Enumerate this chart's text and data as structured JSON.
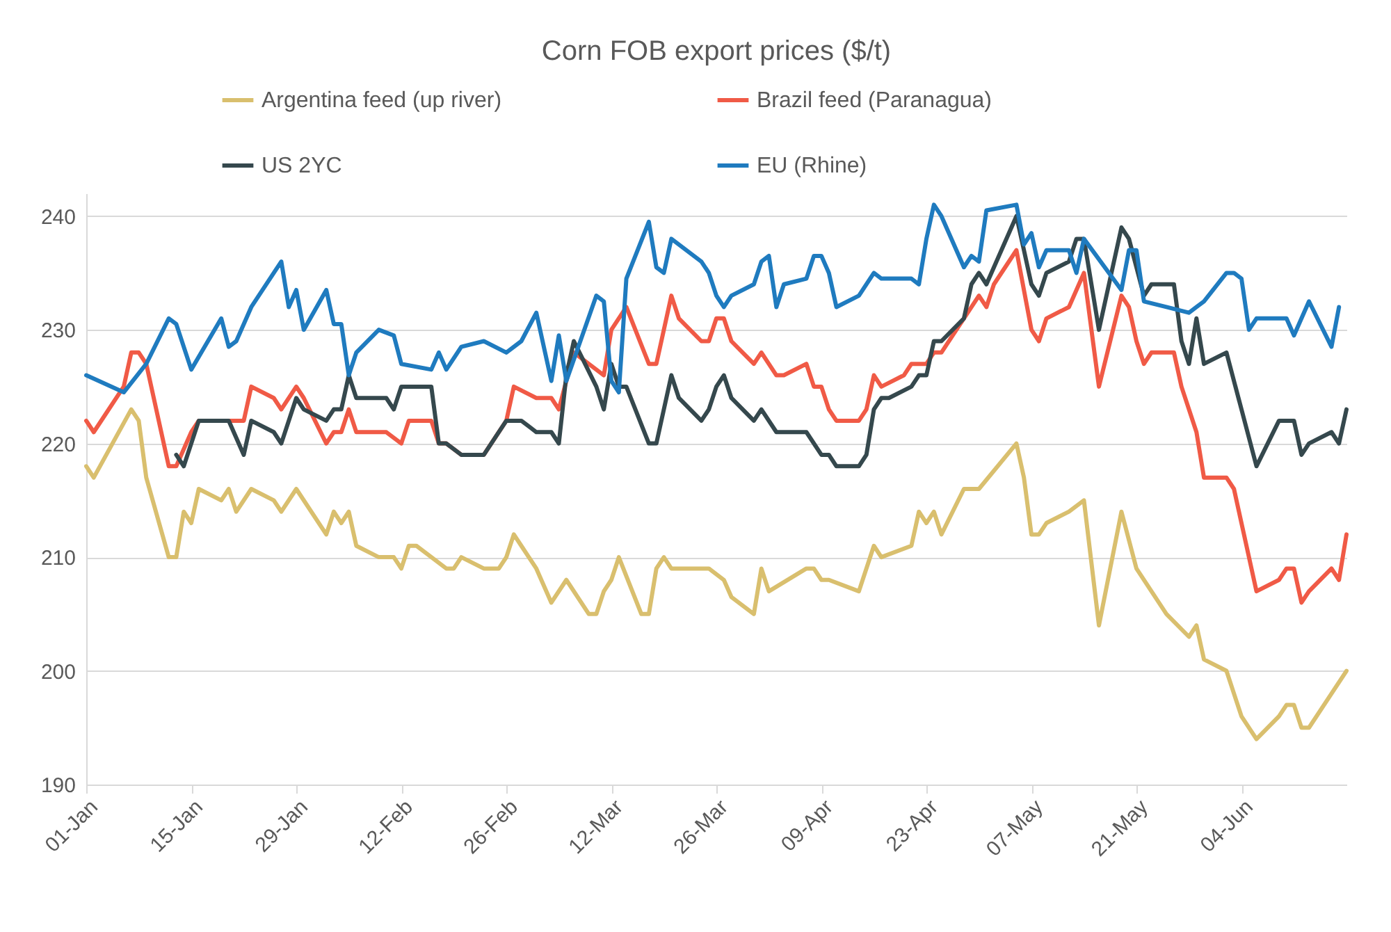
{
  "chart_data": {
    "type": "line",
    "title": "Corn FOB export prices ($/t)",
    "ylim": [
      190,
      242
    ],
    "yticks": [
      190,
      200,
      210,
      220,
      230,
      240
    ],
    "xlim": [
      "--01-01",
      "--06-18"
    ],
    "xticks": [
      {
        "value": "--01-01",
        "label": "01-Jan"
      },
      {
        "value": "--01-15",
        "label": "15-Jan"
      },
      {
        "value": "--01-29",
        "label": "29-Jan"
      },
      {
        "value": "--02-12",
        "label": "12-Feb"
      },
      {
        "value": "--02-26",
        "label": "26-Feb"
      },
      {
        "value": "--03-12",
        "label": "12-Mar"
      },
      {
        "value": "--03-26",
        "label": "26-Mar"
      },
      {
        "value": "--04-09",
        "label": "09-Apr"
      },
      {
        "value": "--04-23",
        "label": "23-Apr"
      },
      {
        "value": "--05-07",
        "label": "07-May"
      },
      {
        "value": "--05-21",
        "label": "21-May"
      },
      {
        "value": "--06-04",
        "label": "04-Jun"
      }
    ],
    "grid": "y",
    "legend": "top",
    "line_style": "solid",
    "series": [
      {
        "name": "Argentina feed (up river)",
        "color": "#d9bf6e",
        "x": [
          "--01-01",
          "--01-02",
          "--01-07",
          "--01-08",
          "--01-09",
          "--01-12",
          "--01-13",
          "--01-14",
          "--01-15",
          "--01-16",
          "--01-19",
          "--01-20",
          "--01-21",
          "--01-23",
          "--01-26",
          "--01-27",
          "--01-29",
          "--02-02",
          "--02-03",
          "--02-04",
          "--02-05",
          "--02-06",
          "--02-09",
          "--02-11",
          "--02-12",
          "--02-13",
          "--02-14",
          "--02-18",
          "--02-19",
          "--02-20",
          "--02-23",
          "--02-25",
          "--02-26",
          "--02-27",
          "--02-28",
          "--03-02",
          "--03-04",
          "--03-06",
          "--03-09",
          "--03-10",
          "--03-11",
          "--03-12",
          "--03-13",
          "--03-16",
          "--03-17",
          "--03-18",
          "--03-19",
          "--03-20",
          "--03-25",
          "--03-27",
          "--03-28",
          "--03-31",
          "--04-01",
          "--04-02",
          "--04-07",
          "--04-08",
          "--04-09",
          "--04-10",
          "--04-14",
          "--04-16",
          "--04-17",
          "--04-21",
          "--04-22",
          "--04-23",
          "--04-24",
          "--04-25",
          "--04-28",
          "--04-30",
          "--05-05",
          "--05-06",
          "--05-07",
          "--05-08",
          "--05-09",
          "--05-12",
          "--05-14",
          "--05-16",
          "--05-19",
          "--05-21",
          "--05-23",
          "--05-25",
          "--05-28",
          "--05-29",
          "--05-30",
          "--06-02",
          "--06-04",
          "--06-06",
          "--06-09",
          "--06-10",
          "--06-11",
          "--06-12",
          "--06-13",
          "--06-18"
        ],
        "values": [
          218,
          217,
          223,
          222,
          217,
          210,
          210,
          214,
          213,
          216,
          215,
          216,
          214,
          216,
          215,
          214,
          216,
          212,
          214,
          213,
          214,
          211,
          210,
          210,
          209,
          211,
          211,
          209,
          209,
          210,
          209,
          209,
          210,
          212,
          211,
          209,
          206,
          208,
          205,
          205,
          207,
          208,
          210,
          205,
          205,
          209,
          210,
          209,
          209,
          208,
          206.5,
          205,
          209,
          207,
          209,
          209,
          208,
          208,
          207,
          211,
          210,
          211,
          214,
          213,
          214,
          212,
          216,
          216,
          220,
          217,
          212,
          212,
          213,
          214,
          215,
          204,
          214,
          209,
          207,
          205,
          203,
          204,
          201,
          200,
          196,
          194,
          196,
          197,
          197,
          195,
          195,
          200
        ]
      },
      {
        "name": "Brazil feed (Paranagua)",
        "color": "#f05a46",
        "x": [
          "--01-01",
          "--01-02",
          "--01-06",
          "--01-07",
          "--01-08",
          "--01-09",
          "--01-12",
          "--01-13",
          "--01-15",
          "--01-16",
          "--01-22",
          "--01-23",
          "--01-26",
          "--01-27",
          "--01-29",
          "--01-30",
          "--02-02",
          "--02-03",
          "--02-04",
          "--02-05",
          "--02-06",
          "--02-10",
          "--02-12",
          "--02-13",
          "--02-16",
          "--02-17",
          "--02-18",
          "--02-20",
          "--02-23",
          "--02-26",
          "--02-27",
          "--03-02",
          "--03-04",
          "--03-05",
          "--03-07",
          "--03-11",
          "--03-12",
          "--03-14",
          "--03-17",
          "--03-18",
          "--03-20",
          "--03-21",
          "--03-24",
          "--03-25",
          "--03-26",
          "--03-27",
          "--03-28",
          "--03-31",
          "--04-01",
          "--04-03",
          "--04-04",
          "--04-07",
          "--04-08",
          "--04-09",
          "--04-10",
          "--04-11",
          "--04-14",
          "--04-15",
          "--04-16",
          "--04-17",
          "--04-20",
          "--04-21",
          "--04-23",
          "--04-24",
          "--04-25",
          "--04-27",
          "--04-28",
          "--04-30",
          "--05-01",
          "--05-02",
          "--05-05",
          "--05-07",
          "--05-08",
          "--05-09",
          "--05-12",
          "--05-14",
          "--05-16",
          "--05-19",
          "--05-20",
          "--05-21",
          "--05-22",
          "--05-23",
          "--05-26",
          "--05-27",
          "--05-29",
          "--05-30",
          "--06-02",
          "--06-03",
          "--06-06",
          "--06-09",
          "--06-10",
          "--06-11",
          "--06-12",
          "--06-13",
          "--06-16",
          "--06-17",
          "--06-18"
        ],
        "values": [
          222,
          221,
          225,
          228,
          228,
          227,
          218,
          218,
          221,
          222,
          222,
          225,
          224,
          223,
          225,
          224,
          220,
          221,
          221,
          223,
          221,
          221,
          220,
          222,
          222,
          220,
          220,
          219,
          219,
          222,
          225,
          224,
          224,
          223,
          228,
          226,
          230,
          232,
          227,
          227,
          233,
          231,
          229,
          229,
          231,
          231,
          229,
          227,
          228,
          226,
          226,
          227,
          225,
          225,
          223,
          222,
          222,
          223,
          226,
          225,
          226,
          227,
          227,
          228,
          228,
          230,
          231,
          233,
          232,
          234,
          237,
          230,
          229,
          231,
          232,
          235,
          225,
          233,
          232,
          229,
          227,
          228,
          228,
          225,
          221,
          217,
          217,
          216,
          207,
          208,
          209,
          209,
          206,
          207,
          209,
          208,
          212
        ]
      },
      {
        "name": "US 2YC",
        "color": "#35484d",
        "x": [
          "--01-13",
          "--01-14",
          "--01-16",
          "--01-20",
          "--01-22",
          "--01-23",
          "--01-26",
          "--01-27",
          "--01-29",
          "--01-30",
          "--02-02",
          "--02-03",
          "--02-04",
          "--02-05",
          "--02-06",
          "--02-10",
          "--02-11",
          "--02-12",
          "--02-16",
          "--02-17",
          "--02-18",
          "--02-20",
          "--02-23",
          "--02-26",
          "--02-28",
          "--03-02",
          "--03-04",
          "--03-05",
          "--03-06",
          "--03-07",
          "--03-10",
          "--03-11",
          "--03-12",
          "--03-13",
          "--03-14",
          "--03-17",
          "--03-18",
          "--03-20",
          "--03-21",
          "--03-24",
          "--03-25",
          "--03-26",
          "--03-27",
          "--03-28",
          "--03-31",
          "--04-01",
          "--04-03",
          "--04-07",
          "--04-09",
          "--04-10",
          "--04-11",
          "--04-14",
          "--04-15",
          "--04-16",
          "--04-17",
          "--04-18",
          "--04-21",
          "--04-22",
          "--04-23",
          "--04-24",
          "--04-25",
          "--04-28",
          "--04-29",
          "--04-30",
          "--05-01",
          "--05-05",
          "--05-06",
          "--05-07",
          "--05-08",
          "--05-09",
          "--05-12",
          "--05-13",
          "--05-14",
          "--05-16",
          "--05-19",
          "--05-20",
          "--05-22",
          "--05-23",
          "--05-26",
          "--05-27",
          "--05-28",
          "--05-29",
          "--05-30",
          "--06-02",
          "--06-04",
          "--06-06",
          "--06-09",
          "--06-11",
          "--06-12",
          "--06-13",
          "--06-16",
          "--06-17",
          "--06-18"
        ],
        "values": [
          219,
          218,
          222,
          222,
          219,
          222,
          221,
          220,
          224,
          223,
          222,
          223,
          223,
          226,
          224,
          224,
          223,
          225,
          225,
          220,
          220,
          219,
          219,
          222,
          222,
          221,
          221,
          220,
          226,
          229,
          225,
          223,
          227,
          225,
          225,
          220,
          220,
          226,
          224,
          222,
          223,
          225,
          226,
          224,
          222,
          223,
          221,
          221,
          219,
          219,
          218,
          218,
          219,
          223,
          224,
          224,
          225,
          226,
          226,
          229,
          229,
          231,
          234,
          235,
          234,
          240,
          237,
          234,
          233,
          235,
          236,
          238,
          238,
          230,
          239,
          238,
          233,
          234,
          234,
          229,
          227,
          231,
          227,
          228,
          223,
          218,
          222,
          222,
          219,
          220,
          221,
          220,
          223
        ]
      },
      {
        "name": "EU (Rhine)",
        "color": "#1f7bbf",
        "x": [
          "--01-01",
          "--01-06",
          "--01-09",
          "--01-12",
          "--01-13",
          "--01-15",
          "--01-19",
          "--01-20",
          "--01-21",
          "--01-23",
          "--01-26",
          "--01-27",
          "--01-28",
          "--01-29",
          "--01-30",
          "--02-02",
          "--02-03",
          "--02-04",
          "--02-05",
          "--02-06",
          "--02-09",
          "--02-11",
          "--02-12",
          "--02-16",
          "--02-17",
          "--02-18",
          "--02-20",
          "--02-23",
          "--02-26",
          "--02-28",
          "--03-02",
          "--03-04",
          "--03-05",
          "--03-06",
          "--03-10",
          "--03-11",
          "--03-12",
          "--03-13",
          "--03-14",
          "--03-17",
          "--03-18",
          "--03-19",
          "--03-20",
          "--03-24",
          "--03-25",
          "--03-26",
          "--03-27",
          "--03-28",
          "--03-31",
          "--04-01",
          "--04-02",
          "--04-03",
          "--04-04",
          "--04-07",
          "--04-08",
          "--04-09",
          "--04-10",
          "--04-11",
          "--04-14",
          "--04-16",
          "--04-17",
          "--04-21",
          "--04-22",
          "--04-23",
          "--04-24",
          "--04-25",
          "--04-27",
          "--04-28",
          "--04-29",
          "--04-30",
          "--05-01",
          "--05-05",
          "--05-06",
          "--05-07",
          "--05-08",
          "--05-09",
          "--05-12",
          "--05-13",
          "--05-14",
          "--05-19",
          "--05-20",
          "--05-21",
          "--05-22",
          "--05-25",
          "--05-28",
          "--05-29",
          "--05-30",
          "--06-02",
          "--06-03",
          "--06-04",
          "--06-05",
          "--06-06",
          "--06-09",
          "--06-10",
          "--06-11",
          "--06-13",
          "--06-16",
          "--06-17"
        ],
        "values": [
          226,
          224.5,
          227,
          231,
          230.5,
          226.5,
          231,
          228.5,
          229,
          232,
          235,
          236,
          232,
          233.5,
          230,
          233.5,
          230.5,
          230.5,
          226,
          228,
          230,
          229.5,
          227,
          226.5,
          228,
          226.5,
          228.5,
          229,
          228,
          229,
          231.5,
          225.5,
          229.5,
          225.5,
          233,
          232.5,
          225.5,
          224.5,
          234.5,
          239.5,
          235.5,
          235,
          238,
          236,
          235,
          233,
          232,
          233,
          234,
          236,
          236.5,
          232,
          234,
          234.5,
          236.5,
          236.5,
          235,
          232,
          233,
          235,
          234.5,
          234.5,
          234,
          238,
          241,
          240,
          237,
          235.5,
          236.5,
          236,
          240.5,
          241,
          237.5,
          238.5,
          235.5,
          237,
          237,
          235,
          238,
          233.5,
          237,
          237,
          232.5,
          232,
          231.5,
          232,
          232.5,
          235,
          235,
          234.5,
          230,
          231,
          231,
          231,
          229.5,
          232.5,
          228.5,
          232
        ]
      }
    ]
  }
}
